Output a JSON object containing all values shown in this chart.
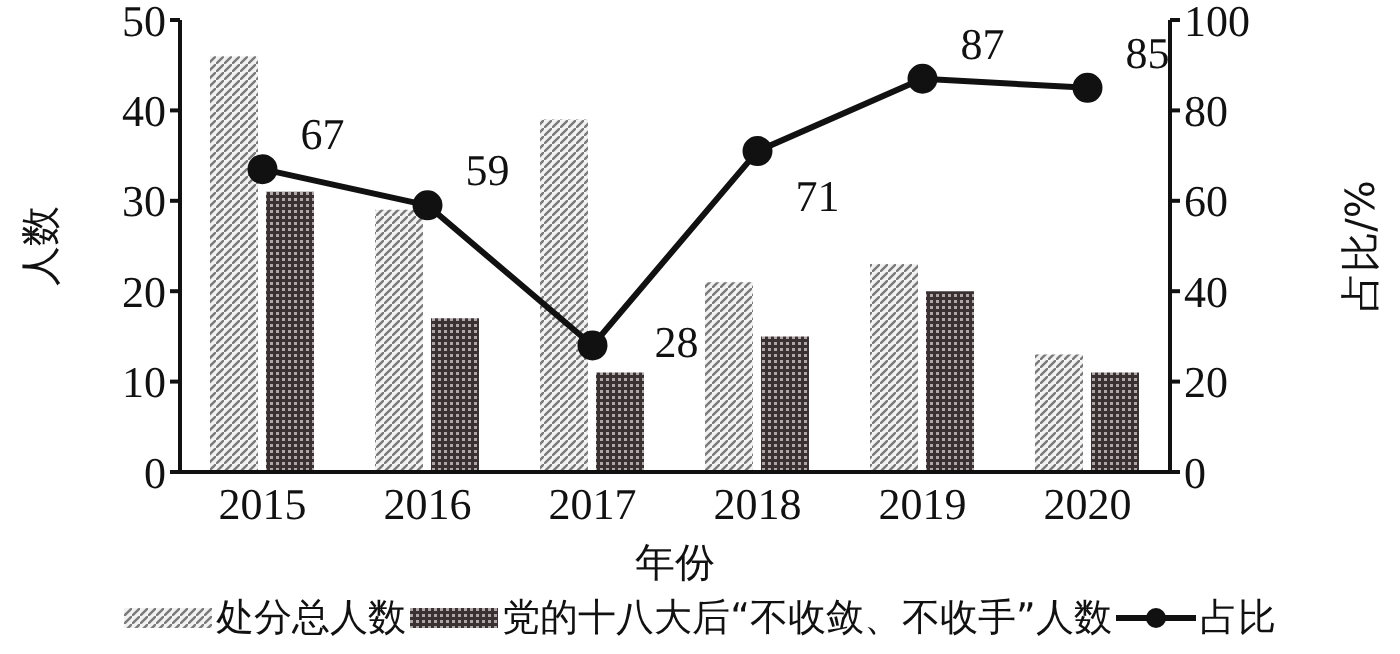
{
  "chart_data": {
    "type": "bar",
    "xlabel": "年份",
    "ylabel": "人数",
    "y2label": "占比/%",
    "categories": [
      "2015",
      "2016",
      "2017",
      "2018",
      "2019",
      "2020"
    ],
    "series": [
      {
        "name": "处分总人数",
        "color": "#7a7a7a",
        "values": [
          46,
          29,
          39,
          21,
          23,
          13
        ]
      },
      {
        "name": "党的十八大后“不收敛、不收手”人数",
        "color": "#3a3232",
        "values": [
          31,
          17,
          11,
          15,
          20,
          11
        ]
      },
      {
        "name": "占比",
        "type": "line",
        "axis": "y2",
        "color": "#111111",
        "values": [
          67,
          59,
          28,
          71,
          87,
          85
        ],
        "value_labels": [
          "67",
          "59",
          "28",
          "71",
          "87",
          "85"
        ]
      }
    ],
    "ylim": [
      0,
      50
    ],
    "yticks": [
      0,
      10,
      20,
      30,
      40,
      50
    ],
    "y2lim": [
      0,
      100
    ],
    "y2ticks": [
      0,
      20,
      40,
      60,
      80,
      100
    ],
    "marker": "circle",
    "legend": "bottom"
  }
}
